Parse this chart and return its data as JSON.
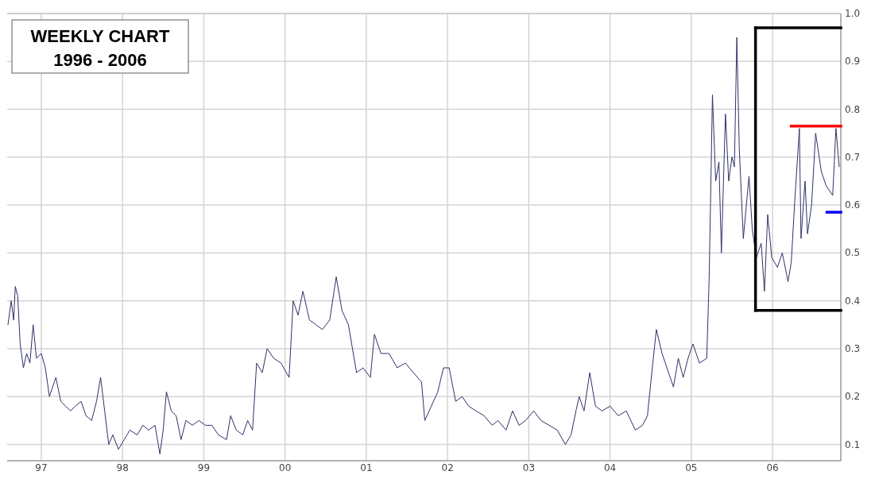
{
  "chart_data": {
    "type": "line",
    "title": "WEEKLY CHART",
    "subtitle": "1996 - 2006",
    "x": [
      1996.59,
      1996.63,
      1996.66,
      1996.68,
      1996.71,
      1996.74,
      1996.78,
      1996.82,
      1996.86,
      1996.9,
      1996.94,
      1997.0,
      1997.05,
      1997.1,
      1997.18,
      1997.24,
      1997.3,
      1997.36,
      1997.42,
      1997.49,
      1997.55,
      1997.62,
      1997.68,
      1997.73,
      1997.78,
      1997.83,
      1997.88,
      1997.95,
      1998.02,
      1998.09,
      1998.18,
      1998.25,
      1998.32,
      1998.4,
      1998.46,
      1998.5,
      1998.54,
      1998.6,
      1998.66,
      1998.72,
      1998.78,
      1998.86,
      1998.94,
      1999.02,
      1999.1,
      1999.18,
      1999.28,
      1999.33,
      1999.4,
      1999.48,
      1999.54,
      1999.6,
      1999.65,
      1999.72,
      1999.78,
      1999.86,
      1999.95,
      2000.05,
      2000.1,
      2000.16,
      2000.22,
      2000.3,
      2000.38,
      2000.46,
      2000.55,
      2000.63,
      2000.7,
      2000.78,
      2000.88,
      2000.96,
      2001.05,
      2001.1,
      2001.18,
      2001.28,
      2001.38,
      2001.48,
      2001.58,
      2001.68,
      2001.72,
      2001.8,
      2001.88,
      2001.95,
      2002.02,
      2002.1,
      2002.18,
      2002.26,
      2002.35,
      2002.45,
      2002.55,
      2002.62,
      2002.72,
      2002.8,
      2002.88,
      2002.96,
      2003.06,
      2003.15,
      2003.25,
      2003.35,
      2003.45,
      2003.52,
      2003.58,
      2003.62,
      2003.68,
      2003.75,
      2003.82,
      2003.9,
      2004.0,
      2004.1,
      2004.2,
      2004.31,
      2004.4,
      2004.46,
      2004.52,
      2004.57,
      2004.64,
      2004.72,
      2004.78,
      2004.84,
      2004.9,
      2004.96,
      2005.02,
      2005.1,
      2005.19,
      2005.22,
      2005.26,
      2005.3,
      2005.34,
      2005.37,
      2005.42,
      2005.46,
      2005.5,
      2005.53,
      2005.56,
      2005.59,
      2005.64,
      2005.71,
      2005.75,
      2005.8,
      2005.86,
      2005.9,
      2005.94,
      2005.99,
      2006.06,
      2006.12,
      2006.19,
      2006.23,
      2006.27,
      2006.33,
      2006.35,
      2006.4,
      2006.43,
      2006.48,
      2006.53,
      2006.6,
      2006.66,
      2006.74,
      2006.78,
      2006.82
    ],
    "series": [
      {
        "color": "#2e3168",
        "values": [
          0.35,
          0.4,
          0.36,
          0.43,
          0.41,
          0.31,
          0.26,
          0.29,
          0.27,
          0.35,
          0.28,
          0.29,
          0.26,
          0.2,
          0.24,
          0.19,
          0.18,
          0.17,
          0.18,
          0.19,
          0.16,
          0.15,
          0.19,
          0.24,
          0.17,
          0.1,
          0.12,
          0.09,
          0.11,
          0.13,
          0.12,
          0.14,
          0.13,
          0.14,
          0.08,
          0.13,
          0.21,
          0.17,
          0.16,
          0.11,
          0.15,
          0.14,
          0.15,
          0.14,
          0.14,
          0.12,
          0.11,
          0.16,
          0.13,
          0.12,
          0.15,
          0.13,
          0.27,
          0.25,
          0.3,
          0.28,
          0.27,
          0.24,
          0.4,
          0.37,
          0.42,
          0.36,
          0.35,
          0.34,
          0.36,
          0.45,
          0.38,
          0.35,
          0.25,
          0.26,
          0.24,
          0.33,
          0.29,
          0.29,
          0.26,
          0.27,
          0.25,
          0.23,
          0.15,
          0.18,
          0.21,
          0.26,
          0.26,
          0.19,
          0.2,
          0.18,
          0.17,
          0.16,
          0.14,
          0.15,
          0.13,
          0.17,
          0.14,
          0.15,
          0.17,
          0.15,
          0.14,
          0.13,
          0.1,
          0.12,
          0.17,
          0.2,
          0.17,
          0.25,
          0.18,
          0.17,
          0.18,
          0.16,
          0.17,
          0.13,
          0.14,
          0.16,
          0.26,
          0.34,
          0.29,
          0.25,
          0.22,
          0.28,
          0.24,
          0.28,
          0.31,
          0.27,
          0.28,
          0.45,
          0.83,
          0.65,
          0.69,
          0.5,
          0.79,
          0.65,
          0.7,
          0.68,
          0.95,
          0.72,
          0.53,
          0.66,
          0.55,
          0.49,
          0.52,
          0.42,
          0.58,
          0.49,
          0.47,
          0.5,
          0.44,
          0.48,
          0.6,
          0.76,
          0.53,
          0.65,
          0.54,
          0.6,
          0.75,
          0.67,
          0.64,
          0.62,
          0.76,
          0.68
        ]
      },
      {
        "color": "#000000",
        "x": [
          2005.79,
          2006.84
        ],
        "values": [
          0.97,
          0.97
        ]
      },
      {
        "color": "#000000",
        "x": [
          2005.79,
          2006.84
        ],
        "values": [
          0.38,
          0.38
        ]
      },
      {
        "color": "#000000",
        "x": [
          2005.79,
          2005.79
        ],
        "values": [
          0.38,
          0.97
        ]
      },
      {
        "color": "#ff0000",
        "x": [
          2006.23,
          2006.84
        ],
        "values": [
          0.765,
          0.765
        ]
      },
      {
        "color": "#0000ff",
        "x": [
          2006.67,
          2006.84
        ],
        "values": [
          0.585,
          0.585
        ]
      }
    ],
    "xlim": [
      1996.58,
      2006.84
    ],
    "xticks": [
      {
        "value": 1997,
        "label": "97"
      },
      {
        "value": 1998,
        "label": "98"
      },
      {
        "value": 1999,
        "label": "99"
      },
      {
        "value": 2000,
        "label": "00"
      },
      {
        "value": 2001,
        "label": "01"
      },
      {
        "value": 2002,
        "label": "02"
      },
      {
        "value": 2003,
        "label": "03"
      },
      {
        "value": 2004,
        "label": "04"
      },
      {
        "value": 2005,
        "label": "05"
      },
      {
        "value": 2006,
        "label": "06"
      }
    ],
    "ylim": [
      0.066,
      1.0
    ],
    "yticks": [
      0.1,
      0.2,
      0.3,
      0.4,
      0.5,
      0.6,
      0.7,
      0.8,
      0.9,
      {
        "value": 1,
        "label": "1.0"
      }
    ],
    "grid": true,
    "line_style": "solid",
    "marker": "none"
  }
}
